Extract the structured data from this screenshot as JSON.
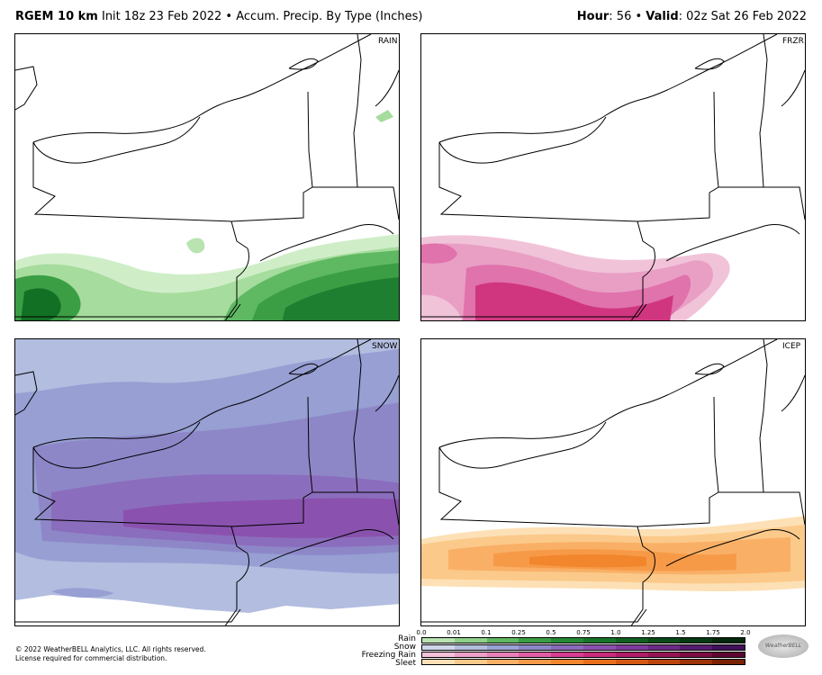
{
  "header": {
    "model": "RGEM 10 km",
    "init": "Init 18z 23 Feb 2022 • Accum. Precip. By Type (Inches)",
    "hour_label": "Hour",
    "hour_value": ": 56 •",
    "valid_label": "Valid",
    "valid_value": ": 02z Sat 26 Feb 2022"
  },
  "panels": {
    "rain": "RAIN",
    "frzr": "FRZR",
    "snow": "SNOW",
    "icep": "ICEP"
  },
  "footer": {
    "line1": "© 2022 WeatherBELL Analytics, LLC. All rights reserved.",
    "line2": "License required for commercial distribution."
  },
  "legend": {
    "ticks": [
      "0.0",
      "0.01",
      "0.1",
      "0.25",
      "0.5",
      "0.75",
      "1.0",
      "1.25",
      "1.5",
      "1.75",
      "2.0"
    ],
    "rows": [
      "Rain",
      "Snow",
      "Freezing Rain",
      "Sleet"
    ],
    "colors": {
      "rain": [
        "#b9e3b1",
        "#8fd18a",
        "#5fb862",
        "#3b9e45",
        "#248a35",
        "#17742a",
        "#0f5f21",
        "#094a18",
        "#053a12",
        "#02290b"
      ],
      "snow": [
        "#cfd6ea",
        "#b3bedf",
        "#9aa3d4",
        "#8d86c6",
        "#8a6bbb",
        "#8a50ad",
        "#7d3a9c",
        "#6a2a86",
        "#561c70",
        "#40115a"
      ],
      "frzr": [
        "#f3c2da",
        "#eda0c8",
        "#e780b6",
        "#df5ea3",
        "#d63c90",
        "#c92a7a",
        "#b01c66",
        "#941454",
        "#7a0c42",
        "#5e0632"
      ],
      "sleet": [
        "#fde0b5",
        "#fbc98a",
        "#f9b066",
        "#f79a48",
        "#f2862c",
        "#e86f1a",
        "#d45812",
        "#bb450c",
        "#9d3307",
        "#7a2204"
      ]
    }
  },
  "logo": "WeatherBELL"
}
